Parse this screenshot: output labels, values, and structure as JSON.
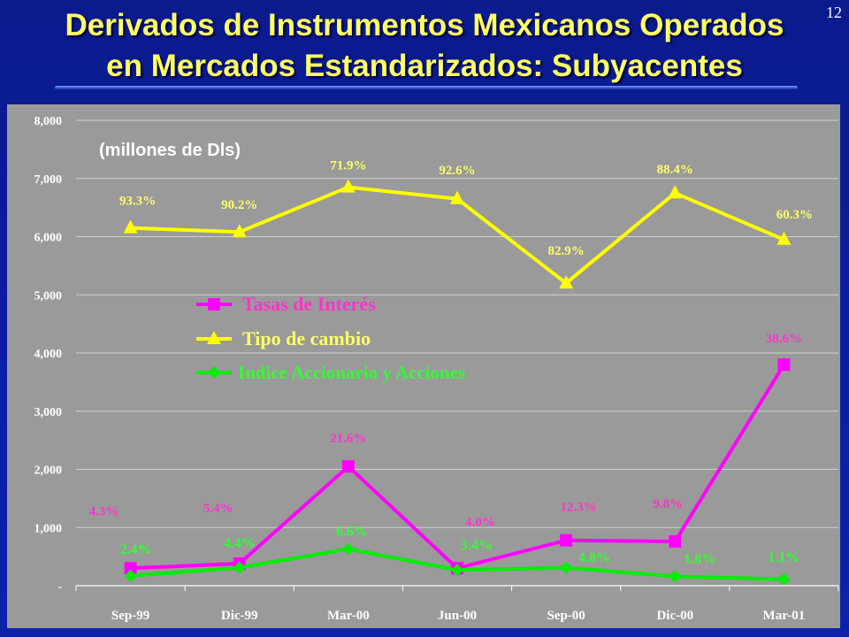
{
  "slide_number": "12",
  "title_line1": "Derivados de Instrumentos Mexicanos Operados",
  "title_line2": "en Mercados Estandarizados: Subyacentes",
  "colors": {
    "plot_background": "#9a9a9a",
    "gridline": "#d0d0d0",
    "tasas": "#ff00ff",
    "tasas_label": "#ff33cc",
    "tipo": "#ffff00",
    "tipo_label": "#ffff66",
    "indice": "#00ee00",
    "indice_label": "#33ff33"
  },
  "chart_data": {
    "type": "line",
    "subtitle": "(millones de Dls)",
    "categories": [
      "Sep-99",
      "Dic-99",
      "Mar-00",
      "Jun-00",
      "Sep-00",
      "Dic-00",
      "Mar-01"
    ],
    "y_ticks": [
      "-",
      "1,000",
      "2,000",
      "3,000",
      "4,000",
      "5,000",
      "6,000",
      "7,000",
      "8,000"
    ],
    "ylim": [
      0,
      8000
    ],
    "grid": true,
    "legend_position": "center-left",
    "series": [
      {
        "name": "Tasas de Interés",
        "marker": "square",
        "values": [
          300,
          380,
          2050,
          300,
          780,
          760,
          3800
        ],
        "labels": [
          "4.3%",
          "5.4%",
          "21.6%",
          "4.0%",
          "12.3%",
          "9.8%",
          "38.6%"
        ]
      },
      {
        "name": "Tipo de cambio",
        "marker": "triangle",
        "values": [
          6150,
          6080,
          6850,
          6650,
          5200,
          6750,
          5950
        ],
        "labels": [
          "93.3%",
          "90.2%",
          "71.9%",
          "92.6%",
          "82.9%",
          "88.4%",
          "60.3%"
        ]
      },
      {
        "name": "Indice Accionario y Acciones",
        "marker": "diamond",
        "values": [
          170,
          310,
          630,
          270,
          310,
          160,
          110
        ],
        "labels": [
          "2.4%",
          "4.4%",
          "6.6%",
          "3.4%",
          "4.8%",
          "1.8%",
          "1.1%"
        ]
      }
    ]
  }
}
